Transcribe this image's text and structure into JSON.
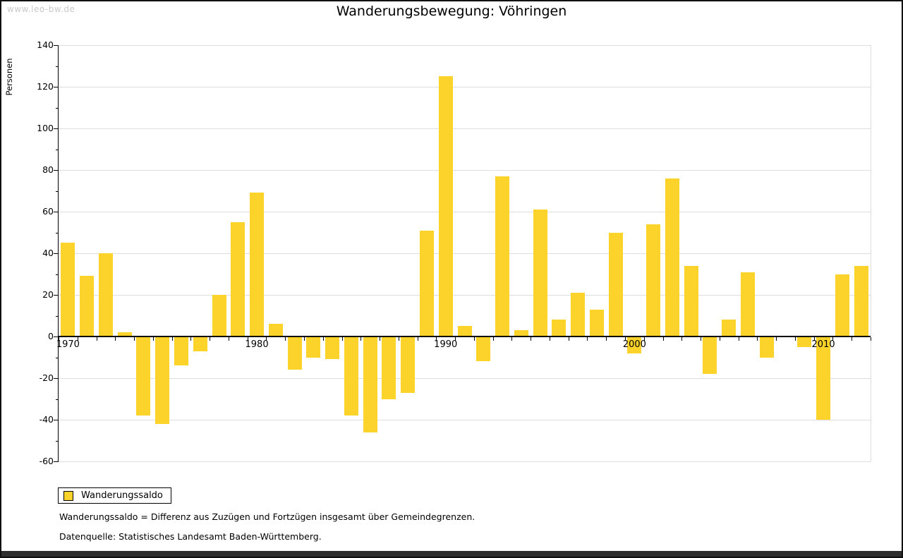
{
  "watermark": "www.leo-bw.de",
  "title": "Wanderungsbewegung: Vöhringen",
  "legend": {
    "label": "Wanderungssaldo"
  },
  "footnotes": [
    "Wanderungssaldo = Differenz aus Zuzügen und Fortzügen insgesamt über Gemeindegrenzen.",
    "Datenquelle: Statistisches Landesamt Baden-Württemberg."
  ],
  "colors": {
    "bar": "#FCD32B",
    "grid": "#DDDDDD",
    "axis": "#000000",
    "watermark": "#C9C9C9",
    "bottom_bar": "#2E2E2E"
  },
  "chart_data": {
    "type": "bar",
    "title": "Wanderungsbewegung: Vöhringen",
    "ylabel": "Personen",
    "xlabel": "",
    "ylim": [
      -60,
      140
    ],
    "ytick_step": 20,
    "yminor_step": 10,
    "grid": true,
    "legend_position": "bottom-left",
    "xticks_labeled": [
      1970,
      1980,
      1990,
      2000,
      2010
    ],
    "x": [
      1970,
      1971,
      1972,
      1973,
      1974,
      1975,
      1976,
      1977,
      1978,
      1979,
      1980,
      1981,
      1982,
      1983,
      1984,
      1985,
      1986,
      1987,
      1988,
      1989,
      1990,
      1991,
      1992,
      1993,
      1994,
      1995,
      1996,
      1997,
      1998,
      1999,
      2000,
      2001,
      2002,
      2003,
      2004,
      2005,
      2006,
      2007,
      2008,
      2009,
      2010,
      2011,
      2012
    ],
    "series": [
      {
        "name": "Wanderungssaldo",
        "values": [
          45,
          29,
          40,
          2,
          -38,
          -42,
          -14,
          -7,
          20,
          55,
          69,
          6,
          -16,
          -10,
          -11,
          -38,
          -46,
          -30,
          -27,
          51,
          125,
          5,
          -12,
          77,
          3,
          61,
          8,
          21,
          13,
          50,
          -8,
          54,
          76,
          34,
          -18,
          8,
          31,
          -10,
          0,
          -5,
          -40,
          30,
          34
        ]
      }
    ]
  }
}
